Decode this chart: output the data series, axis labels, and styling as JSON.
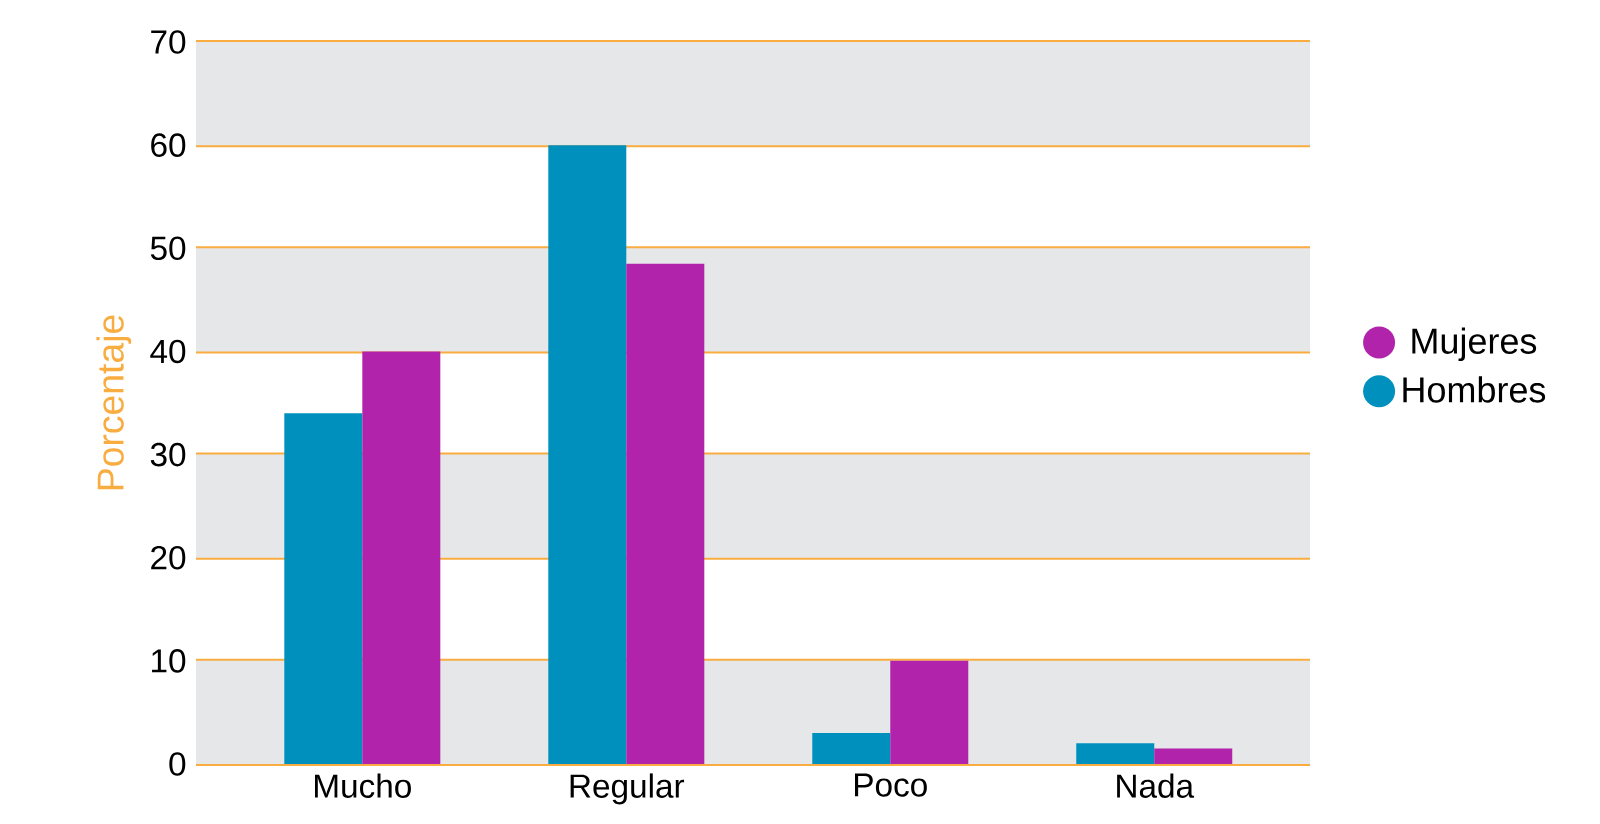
{
  "chart_data": {
    "type": "bar",
    "ylabel": "Porcentaje",
    "categories": [
      "Mucho",
      "Regular",
      "Poco",
      "Nada"
    ],
    "series": [
      {
        "name": "Hombres",
        "color": "#0090bd",
        "values": [
          34,
          60,
          3,
          2
        ]
      },
      {
        "name": "Mujeres",
        "color": "#b023aa",
        "values": [
          40,
          48.5,
          10,
          1.5
        ]
      }
    ],
    "ylim": [
      0,
      70
    ],
    "yticks": [
      0,
      10,
      20,
      30,
      40,
      50,
      60,
      70
    ],
    "grid": "y",
    "legend": "right"
  }
}
